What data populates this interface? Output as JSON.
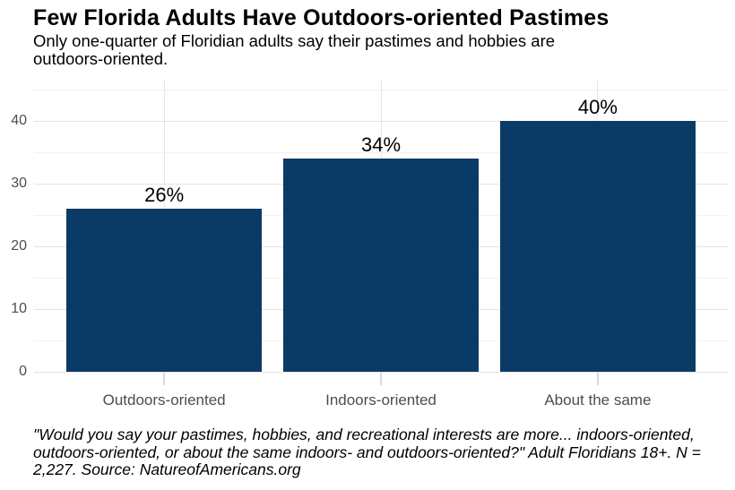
{
  "header": {
    "title": "Few Florida Adults Have Outdoors-oriented Pastimes",
    "subtitle_lines": [
      "Only one-quarter of Floridian adults say their pastimes and hobbies are",
      "outdoors-oriented."
    ]
  },
  "chart_data": {
    "type": "bar",
    "title": "Few Florida Adults Have Outdoors-oriented Pastimes",
    "subtitle": "Only one-quarter of Floridian adults say their pastimes and hobbies are outdoors-oriented.",
    "categories": [
      "Outdoors-oriented",
      "Indoors-oriented",
      "About the same"
    ],
    "values": [
      26,
      34,
      40
    ],
    "value_labels": [
      "26%",
      "34%",
      "40%"
    ],
    "xlabel": "",
    "ylabel": "",
    "ylim": [
      0,
      46
    ],
    "yticks_major": [
      0,
      10,
      20,
      30,
      40
    ],
    "yticks_minor": [
      5,
      15,
      25,
      35,
      45
    ],
    "grid": "horizontal major+minor gridlines, vertical gridline at each category center",
    "legend": false,
    "colors": {
      "bar": "#0a3a66",
      "grid_major": "#e3e3e3",
      "grid_minor": "#f1f1f1",
      "grid_vertical": "#e6e6e6",
      "axis_tick": "#d9d9d9",
      "axis_text": "#4d4d4d",
      "label_text": "#000000",
      "background": "#ffffff"
    },
    "caption": "\"Would you say your pastimes, hobbies, and recreational interests are more... indoors-oriented, outdoors-oriented, or about the same indoors- and outdoors-oriented?\" Adult Floridians 18+. N = 2,227. Source: NatureofAmericans.org"
  },
  "footer": {
    "caption_lines": [
      "\"Would you say your pastimes, hobbies, and recreational interests are more... indoors-oriented,",
      "outdoors-oriented, or about the same indoors- and outdoors-oriented?\" Adult Floridians 18+. N =",
      "2,227. Source: NatureofAmericans.org"
    ]
  }
}
